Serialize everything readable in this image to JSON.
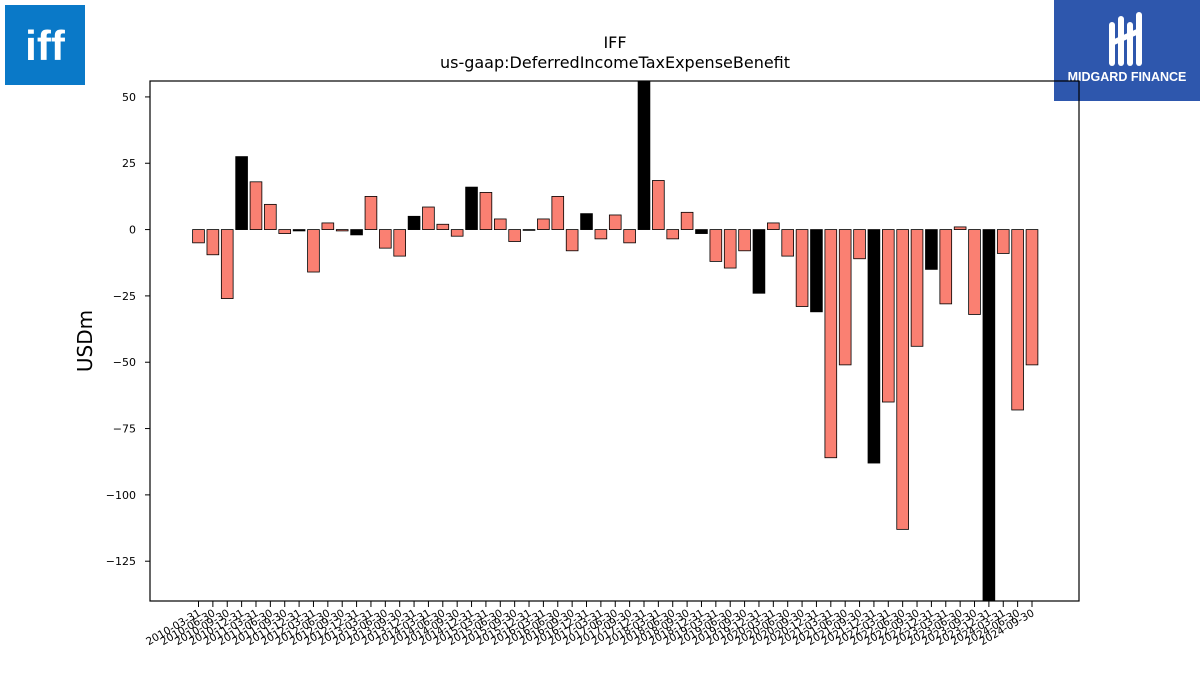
{
  "logos": {
    "left": {
      "text": "iff",
      "color": "#0a79c8"
    },
    "right": {
      "text": "MIDGARD FINANCE",
      "color": "#2e57ad"
    }
  },
  "chart_data": {
    "type": "bar",
    "title": "IFF",
    "subtitle": "us-gaap:DeferredIncomeTaxExpenseBenefit",
    "xlabel": "",
    "ylabel": "USDm",
    "ylim": [
      -140,
      56
    ],
    "yticks": [
      50,
      25,
      0,
      -25,
      -50,
      -75,
      -100,
      -125
    ],
    "ytick_labels": [
      "50",
      "25",
      "0",
      "−25",
      "−50",
      "−75",
      "−100",
      "−125"
    ],
    "grid": false,
    "colors": {
      "quarterly": "#fa8072",
      "annual": "#000000"
    },
    "categories": [
      "2010-03-31",
      "2010-06-30",
      "2010-09-30",
      "2010-12-31",
      "2011-03-31",
      "2011-06-30",
      "2011-09-30",
      "2011-12-31",
      "2012-03-31",
      "2012-06-30",
      "2012-09-30",
      "2012-12-31",
      "2013-03-31",
      "2013-06-30",
      "2013-09-30",
      "2013-12-31",
      "2014-03-31",
      "2014-06-30",
      "2014-09-30",
      "2014-12-31",
      "2015-03-31",
      "2015-06-30",
      "2015-09-30",
      "2015-12-31",
      "2016-03-31",
      "2016-06-30",
      "2016-09-30",
      "2016-12-31",
      "2017-03-31",
      "2017-06-30",
      "2017-09-30",
      "2017-12-31",
      "2018-03-31",
      "2018-06-30",
      "2018-09-30",
      "2018-12-31",
      "2019-03-31",
      "2019-06-30",
      "2019-09-30",
      "2019-12-31",
      "2020-03-31",
      "2020-06-30",
      "2020-09-30",
      "2020-12-31",
      "2021-03-31",
      "2021-06-30",
      "2021-09-30",
      "2021-12-31",
      "2022-03-31",
      "2022-06-30",
      "2022-09-30",
      "2022-12-31",
      "2023-03-31",
      "2023-06-30",
      "2023-09-30",
      "2023-12-31",
      "2024-03-31",
      "2024-06-30",
      "2024-09-30"
    ],
    "values": [
      -5,
      -9.5,
      -26,
      27.5,
      18,
      9.5,
      -1.5,
      -0.5,
      -16,
      2.5,
      -0.5,
      -2,
      12.5,
      -7,
      -10,
      5,
      8.5,
      2,
      -2.5,
      16,
      14,
      4,
      -4.5,
      -0.3,
      4,
      12.5,
      -8,
      6,
      -3.5,
      5.5,
      -5,
      56,
      18.5,
      -3.5,
      6.5,
      -1.5,
      -12,
      -14.5,
      -8,
      -24,
      2.5,
      -10,
      -29,
      -31,
      -86,
      -51,
      -11,
      -88,
      -65,
      -113,
      -44,
      -15,
      -28,
      1,
      -32,
      -140,
      -9,
      -68,
      -51
    ],
    "bar_type": [
      "q",
      "q",
      "q",
      "a",
      "q",
      "q",
      "q",
      "a",
      "q",
      "q",
      "q",
      "a",
      "q",
      "q",
      "q",
      "a",
      "q",
      "q",
      "q",
      "a",
      "q",
      "q",
      "q",
      "a",
      "q",
      "q",
      "q",
      "a",
      "q",
      "q",
      "q",
      "a",
      "q",
      "q",
      "q",
      "a",
      "q",
      "q",
      "q",
      "a",
      "q",
      "q",
      "q",
      "a",
      "q",
      "q",
      "q",
      "a",
      "q",
      "q",
      "q",
      "a",
      "q",
      "q",
      "q",
      "a",
      "q",
      "q",
      "q"
    ]
  }
}
